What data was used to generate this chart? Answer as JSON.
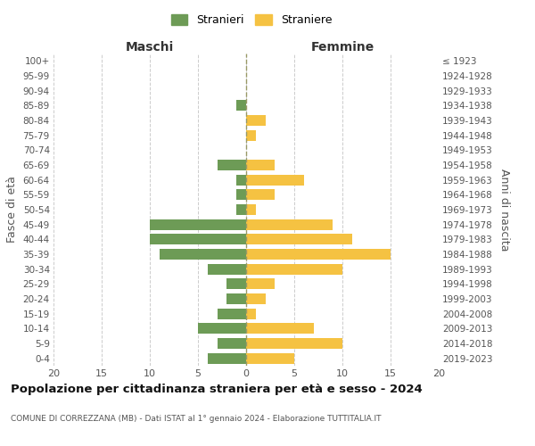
{
  "age_groups": [
    "100+",
    "95-99",
    "90-94",
    "85-89",
    "80-84",
    "75-79",
    "70-74",
    "65-69",
    "60-64",
    "55-59",
    "50-54",
    "45-49",
    "40-44",
    "35-39",
    "30-34",
    "25-29",
    "20-24",
    "15-19",
    "10-14",
    "5-9",
    "0-4"
  ],
  "birth_years": [
    "≤ 1923",
    "1924-1928",
    "1929-1933",
    "1934-1938",
    "1939-1943",
    "1944-1948",
    "1949-1953",
    "1954-1958",
    "1959-1963",
    "1964-1968",
    "1969-1973",
    "1974-1978",
    "1979-1983",
    "1984-1988",
    "1989-1993",
    "1994-1998",
    "1999-2003",
    "2004-2008",
    "2009-2013",
    "2014-2018",
    "2019-2023"
  ],
  "maschi": [
    0,
    0,
    0,
    1,
    0,
    0,
    0,
    3,
    1,
    1,
    1,
    10,
    10,
    9,
    4,
    2,
    2,
    3,
    5,
    3,
    4
  ],
  "femmine": [
    0,
    0,
    0,
    0,
    2,
    1,
    0,
    3,
    6,
    3,
    1,
    9,
    11,
    15,
    10,
    3,
    2,
    1,
    7,
    10,
    5
  ],
  "color_maschi": "#6d9b56",
  "color_femmine": "#f5c242",
  "title": "Popolazione per cittadinanza straniera per età e sesso - 2024",
  "subtitle": "COMUNE DI CORREZZANA (MB) - Dati ISTAT al 1° gennaio 2024 - Elaborazione TUTTITALIA.IT",
  "xlabel_left": "Maschi",
  "xlabel_right": "Femmine",
  "ylabel_left": "Fasce di età",
  "ylabel_right": "Anni di nascita",
  "xlim": 20,
  "legend_maschi": "Stranieri",
  "legend_femmine": "Straniere",
  "background_color": "#ffffff",
  "grid_color": "#cccccc",
  "dashed_line_color": "#999966"
}
